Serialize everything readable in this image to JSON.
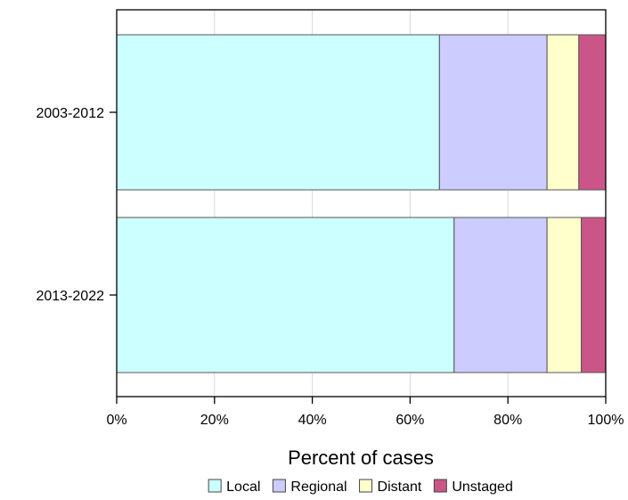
{
  "chart_data": {
    "type": "bar",
    "orientation": "horizontal",
    "stacked": true,
    "categories": [
      "2003-2012",
      "2013-2022"
    ],
    "series": [
      {
        "name": "Local",
        "values": [
          66,
          69
        ],
        "color": "#ccffff"
      },
      {
        "name": "Regional",
        "values": [
          22,
          19
        ],
        "color": "#ccccff"
      },
      {
        "name": "Distant",
        "values": [
          6.5,
          7
        ],
        "color": "#ffffcc"
      },
      {
        "name": "Unstaged",
        "values": [
          5.5,
          5
        ],
        "color": "#cc5588"
      }
    ],
    "xlabel": "Percent of cases",
    "ylabel": "",
    "xlim": [
      0,
      100
    ],
    "x_ticks": [
      "0%",
      "20%",
      "40%",
      "60%",
      "80%",
      "100%"
    ],
    "x_tick_values": [
      0,
      20,
      40,
      60,
      80,
      100
    ],
    "grid": "vertical",
    "legend_position": "bottom"
  }
}
